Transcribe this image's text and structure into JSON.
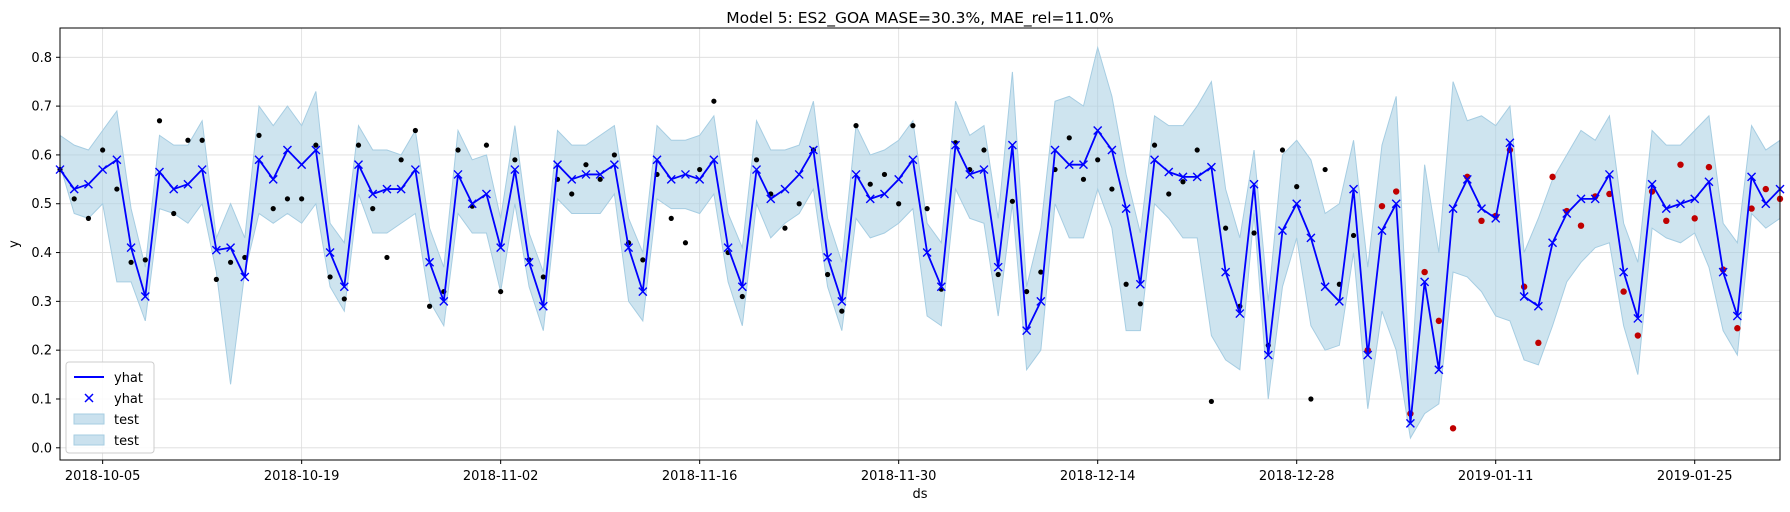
{
  "chart_data": {
    "type": "line",
    "title": "Model 5: ES2_GOA MASE=30.3%, MAE_rel=11.0%",
    "xlabel": "ds",
    "ylabel": "y",
    "xlim": [
      "2018-10-02",
      "2019-01-31"
    ],
    "ylim": [
      -0.025,
      0.86
    ],
    "yticks": [
      0.0,
      0.1,
      0.2,
      0.3,
      0.4,
      0.5,
      0.6,
      0.7,
      0.8
    ],
    "ytick_labels": [
      "0.0",
      "0.1",
      "0.2",
      "0.3",
      "0.4",
      "0.5",
      "0.6",
      "0.7",
      "0.8"
    ],
    "xticks": [
      "2018-10-05",
      "2018-10-19",
      "2018-11-02",
      "2018-11-16",
      "2018-11-30",
      "2018-12-14",
      "2018-12-28",
      "2019-01-11",
      "2019-01-25"
    ],
    "xtick_labels": [
      "2018-10-05",
      "2018-10-19",
      "2018-11-02",
      "2018-11-16",
      "2018-11-30",
      "2018-12-14",
      "2018-12-28",
      "2019-01-11",
      "2019-01-25"
    ],
    "grid": true,
    "legend_position": "bottom-left",
    "legend": [
      {
        "label": "yhat",
        "kind": "line"
      },
      {
        "label": "yhat",
        "kind": "marker"
      },
      {
        "label": "test",
        "kind": "band"
      },
      {
        "label": "test",
        "kind": "band"
      }
    ],
    "colors": {
      "forecast": "#0000ff",
      "band": "#a6cde2",
      "actual": "#000000",
      "test": "#c00000"
    },
    "x": [
      "2018-10-02",
      "2018-10-03",
      "2018-10-04",
      "2018-10-05",
      "2018-10-06",
      "2018-10-07",
      "2018-10-08",
      "2018-10-09",
      "2018-10-10",
      "2018-10-11",
      "2018-10-12",
      "2018-10-13",
      "2018-10-14",
      "2018-10-15",
      "2018-10-16",
      "2018-10-17",
      "2018-10-18",
      "2018-10-19",
      "2018-10-20",
      "2018-10-21",
      "2018-10-22",
      "2018-10-23",
      "2018-10-24",
      "2018-10-25",
      "2018-10-26",
      "2018-10-27",
      "2018-10-28",
      "2018-10-29",
      "2018-10-30",
      "2018-10-31",
      "2018-11-01",
      "2018-11-02",
      "2018-11-03",
      "2018-11-04",
      "2018-11-05",
      "2018-11-06",
      "2018-11-07",
      "2018-11-08",
      "2018-11-09",
      "2018-11-10",
      "2018-11-11",
      "2018-11-12",
      "2018-11-13",
      "2018-11-14",
      "2018-11-15",
      "2018-11-16",
      "2018-11-17",
      "2018-11-18",
      "2018-11-19",
      "2018-11-20",
      "2018-11-21",
      "2018-11-22",
      "2018-11-23",
      "2018-11-24",
      "2018-11-25",
      "2018-11-26",
      "2018-11-27",
      "2018-11-28",
      "2018-11-29",
      "2018-11-30",
      "2018-12-01",
      "2018-12-02",
      "2018-12-03",
      "2018-12-04",
      "2018-12-05",
      "2018-12-06",
      "2018-12-07",
      "2018-12-08",
      "2018-12-09",
      "2018-12-10",
      "2018-12-11",
      "2018-12-12",
      "2018-12-13",
      "2018-12-14",
      "2018-12-15",
      "2018-12-16",
      "2018-12-17",
      "2018-12-18",
      "2018-12-19",
      "2018-12-20",
      "2018-12-21",
      "2018-12-22",
      "2018-12-23",
      "2018-12-24",
      "2018-12-25",
      "2018-12-26",
      "2018-12-27",
      "2018-12-28",
      "2018-12-29",
      "2018-12-30",
      "2018-12-31",
      "2019-01-01",
      "2019-01-02",
      "2019-01-03",
      "2019-01-04",
      "2019-01-05",
      "2019-01-06",
      "2019-01-07",
      "2019-01-08",
      "2019-01-09",
      "2019-01-10",
      "2019-01-11",
      "2019-01-12",
      "2019-01-13",
      "2019-01-14",
      "2019-01-15",
      "2019-01-16",
      "2019-01-17",
      "2019-01-18",
      "2019-01-19",
      "2019-01-20",
      "2019-01-21",
      "2019-01-22",
      "2019-01-23",
      "2019-01-24",
      "2019-01-25",
      "2019-01-26",
      "2019-01-27",
      "2019-01-28",
      "2019-01-29",
      "2019-01-30",
      "2019-01-31"
    ],
    "yhat": [
      0.57,
      0.53,
      0.54,
      0.57,
      0.59,
      0.41,
      0.31,
      0.565,
      0.53,
      0.54,
      0.57,
      0.405,
      0.41,
      0.35,
      0.59,
      0.55,
      0.61,
      0.58,
      0.61,
      0.4,
      0.33,
      0.58,
      0.52,
      0.53,
      0.53,
      0.57,
      0.38,
      0.3,
      0.56,
      0.5,
      0.52,
      0.41,
      0.57,
      0.38,
      0.29,
      0.58,
      0.55,
      0.56,
      0.56,
      0.58,
      0.41,
      0.32,
      0.59,
      0.55,
      0.56,
      0.55,
      0.59,
      0.41,
      0.33,
      0.57,
      0.51,
      0.53,
      0.56,
      0.61,
      0.39,
      0.3,
      0.56,
      0.51,
      0.52,
      0.55,
      0.59,
      0.4,
      0.33,
      0.62,
      0.56,
      0.57,
      0.37,
      0.62,
      0.24,
      0.3,
      0.61,
      0.58,
      0.58,
      0.65,
      0.61,
      0.49,
      0.335,
      0.59,
      0.565,
      0.555,
      0.555,
      0.575,
      0.36,
      0.275,
      0.54,
      0.19,
      0.445,
      0.5,
      0.43,
      0.33,
      0.3,
      0.53,
      0.19,
      0.445,
      0.5,
      0.05,
      0.34,
      0.16,
      0.49,
      0.55,
      0.49,
      0.47,
      0.625,
      0.31,
      0.29,
      0.42,
      0.48,
      0.51,
      0.51,
      0.56,
      0.36,
      0.265,
      0.54,
      0.49,
      0.5,
      0.51,
      0.545,
      0.36,
      0.27,
      0.555,
      0.5,
      0.53
    ],
    "yhat_lower": [
      0.58,
      0.48,
      0.47,
      0.5,
      0.34,
      0.34,
      0.26,
      0.49,
      0.48,
      0.46,
      0.5,
      0.36,
      0.13,
      0.36,
      0.48,
      0.46,
      0.48,
      0.46,
      0.5,
      0.33,
      0.28,
      0.52,
      0.44,
      0.44,
      0.46,
      0.48,
      0.3,
      0.25,
      0.48,
      0.44,
      0.44,
      0.32,
      0.5,
      0.33,
      0.24,
      0.51,
      0.48,
      0.48,
      0.48,
      0.52,
      0.3,
      0.26,
      0.51,
      0.49,
      0.49,
      0.48,
      0.52,
      0.34,
      0.25,
      0.5,
      0.43,
      0.46,
      0.48,
      0.53,
      0.33,
      0.24,
      0.47,
      0.43,
      0.44,
      0.46,
      0.49,
      0.27,
      0.25,
      0.53,
      0.47,
      0.46,
      0.27,
      0.5,
      0.16,
      0.2,
      0.5,
      0.43,
      0.43,
      0.53,
      0.45,
      0.24,
      0.24,
      0.5,
      0.47,
      0.43,
      0.43,
      0.23,
      0.18,
      0.16,
      0.48,
      0.1,
      0.33,
      0.43,
      0.25,
      0.2,
      0.21,
      0.4,
      0.08,
      0.28,
      0.2,
      0.02,
      0.07,
      0.09,
      0.36,
      0.35,
      0.32,
      0.27,
      0.26,
      0.18,
      0.17,
      0.25,
      0.34,
      0.38,
      0.41,
      0.42,
      0.25,
      0.15,
      0.45,
      0.43,
      0.42,
      0.44,
      0.37,
      0.24,
      0.19,
      0.48,
      0.45,
      0.47
    ],
    "yhat_upper": [
      0.64,
      0.62,
      0.61,
      0.65,
      0.69,
      0.49,
      0.37,
      0.64,
      0.62,
      0.62,
      0.67,
      0.43,
      0.5,
      0.43,
      0.7,
      0.66,
      0.7,
      0.66,
      0.73,
      0.46,
      0.42,
      0.66,
      0.61,
      0.61,
      0.6,
      0.65,
      0.45,
      0.37,
      0.65,
      0.59,
      0.6,
      0.47,
      0.66,
      0.44,
      0.36,
      0.65,
      0.62,
      0.62,
      0.64,
      0.66,
      0.47,
      0.4,
      0.66,
      0.63,
      0.63,
      0.64,
      0.68,
      0.48,
      0.41,
      0.67,
      0.61,
      0.61,
      0.62,
      0.71,
      0.47,
      0.38,
      0.66,
      0.6,
      0.61,
      0.63,
      0.67,
      0.46,
      0.42,
      0.71,
      0.64,
      0.66,
      0.47,
      0.77,
      0.33,
      0.45,
      0.71,
      0.72,
      0.7,
      0.82,
      0.72,
      0.56,
      0.44,
      0.68,
      0.66,
      0.66,
      0.7,
      0.75,
      0.53,
      0.43,
      0.61,
      0.3,
      0.6,
      0.63,
      0.59,
      0.48,
      0.5,
      0.63,
      0.37,
      0.62,
      0.72,
      0.12,
      0.58,
      0.4,
      0.75,
      0.67,
      0.68,
      0.66,
      0.7,
      0.4,
      0.47,
      0.55,
      0.6,
      0.65,
      0.63,
      0.68,
      0.46,
      0.38,
      0.65,
      0.62,
      0.62,
      0.65,
      0.68,
      0.46,
      0.42,
      0.66,
      0.61,
      0.63
    ],
    "actual": [
      0.57,
      0.51,
      0.47,
      0.61,
      0.53,
      0.38,
      0.385,
      0.67,
      0.48,
      0.63,
      0.63,
      0.345,
      0.38,
      0.39,
      0.64,
      0.49,
      0.51,
      0.51,
      0.62,
      0.35,
      0.305,
      0.62,
      0.49,
      0.39,
      0.59,
      0.65,
      0.29,
      0.32,
      0.61,
      0.495,
      0.62,
      0.32,
      0.59,
      0.385,
      0.35,
      0.55,
      0.52,
      0.58,
      0.55,
      0.6,
      0.42,
      0.385,
      0.56,
      0.47,
      0.42,
      0.57,
      0.71,
      0.4,
      0.31,
      0.59,
      0.52,
      0.45,
      0.5,
      0.61,
      0.355,
      0.28,
      0.66,
      0.54,
      0.56,
      0.5,
      0.66,
      0.49,
      0.325,
      0.625,
      0.57,
      0.61,
      0.355,
      0.505,
      0.32,
      0.36,
      0.57,
      0.635,
      0.55,
      0.59,
      0.53,
      0.335,
      0.295,
      0.62,
      0.52,
      0.545,
      0.61,
      0.095,
      0.45,
      0.29,
      0.44,
      0.21,
      0.61,
      0.535,
      0.1,
      0.57,
      0.335,
      0.435
    ],
    "test_actual": [
      0.2,
      0.495,
      0.525,
      0.07,
      0.36,
      0.26,
      0.04,
      0.555,
      0.465,
      0.475,
      0.61,
      0.33,
      0.215,
      0.555,
      0.485,
      0.455,
      0.515,
      0.52,
      0.32,
      0.23,
      0.525,
      0.465,
      0.58,
      0.47,
      0.575,
      0.365,
      0.245,
      0.49,
      0.53,
      0.51
    ]
  }
}
